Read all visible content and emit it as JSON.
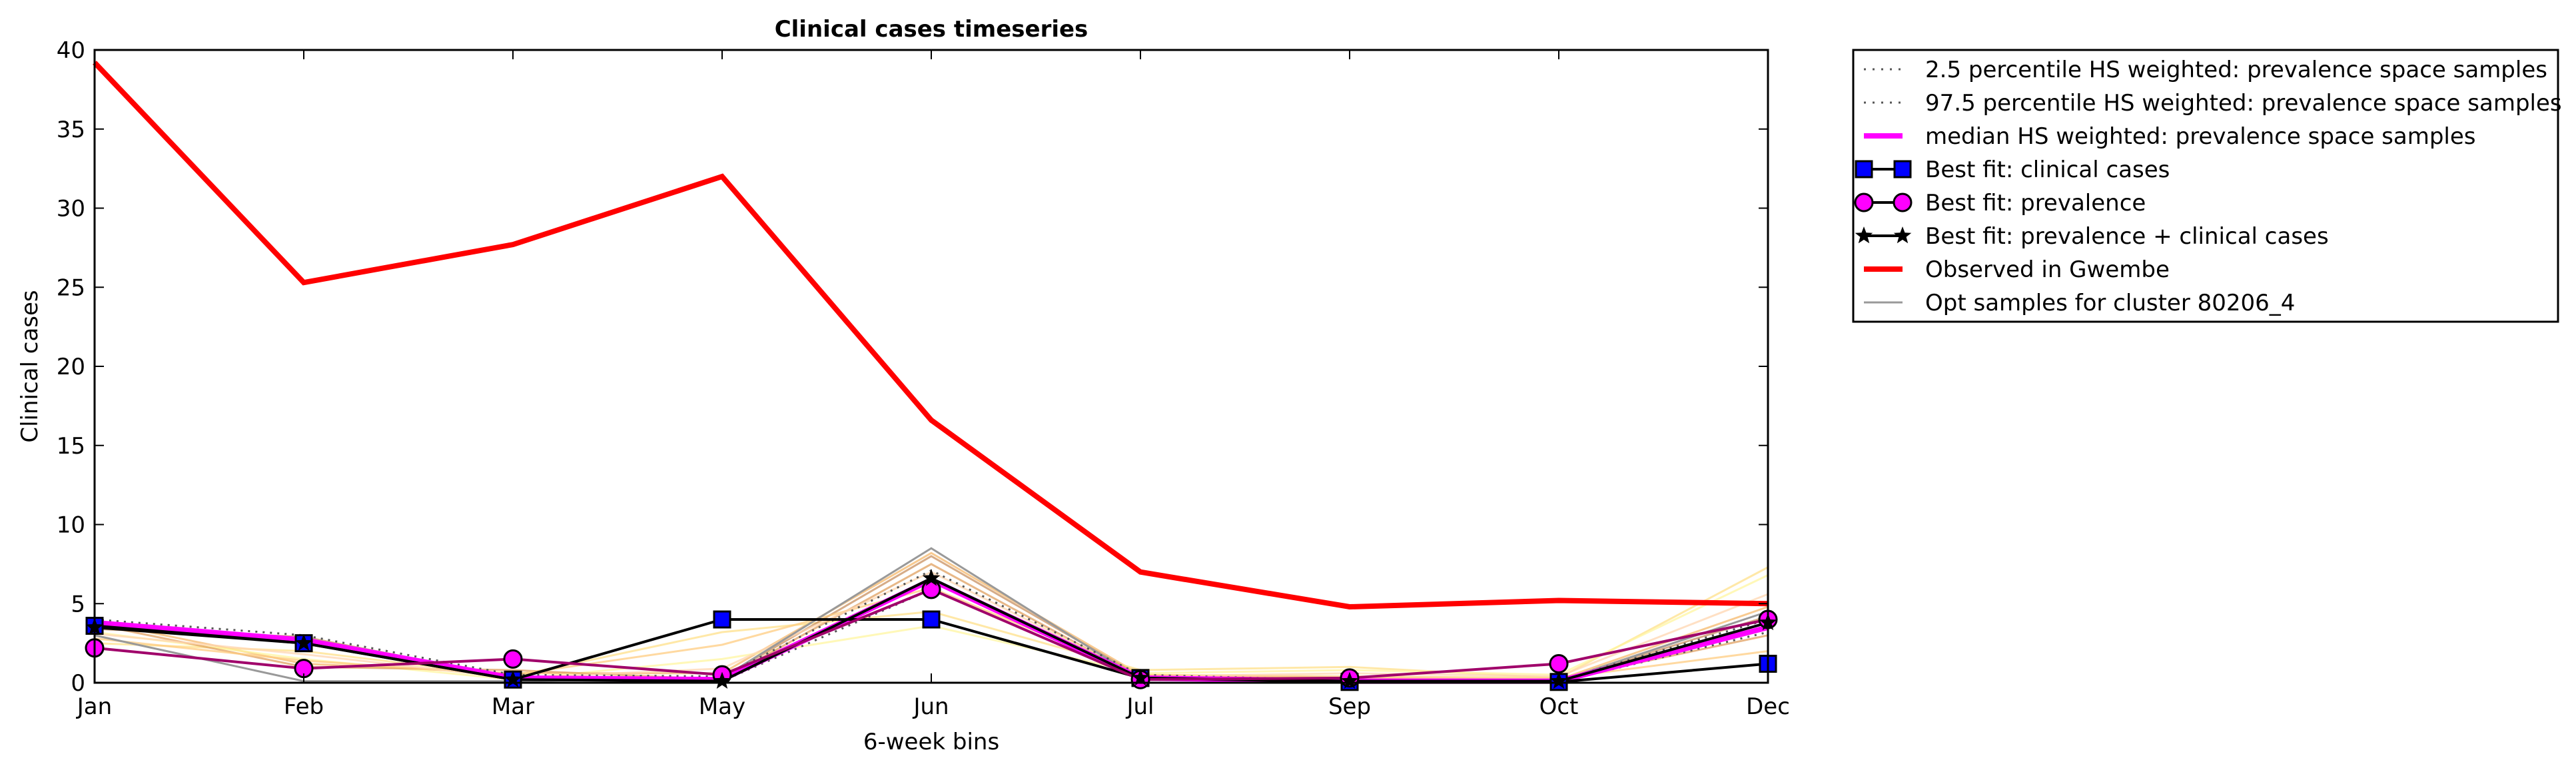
{
  "chart_data": {
    "type": "line",
    "title": "Clinical cases timeseries",
    "xlabel": "6-week bins",
    "ylabel": "Clinical cases",
    "categories": [
      "Jan",
      "Feb",
      "Mar",
      "May",
      "Jun",
      "Jul",
      "Sep",
      "Oct",
      "Dec"
    ],
    "ylim": [
      0,
      40
    ],
    "yticks": [
      "0",
      "5",
      "10",
      "15",
      "20",
      "25",
      "30",
      "35",
      "40"
    ],
    "grid": false,
    "legend_position": "outside-right",
    "series": [
      {
        "name": "2.5 percentile HS weighted: prevalence space samples",
        "style": "dotted",
        "color": "#555555",
        "values": [
          3.6,
          2.6,
          0.2,
          0.1,
          5.9,
          0.2,
          0.05,
          0.05,
          3.2
        ]
      },
      {
        "name": "97.5 percentile HS weighted: prevalence space samples",
        "style": "dotted",
        "color": "#555555",
        "values": [
          4.0,
          3.0,
          0.5,
          0.4,
          7.1,
          0.5,
          0.15,
          0.15,
          4.0
        ]
      },
      {
        "name": "median HS weighted: prevalence space samples",
        "style": "solid-thick",
        "color": "#ff00ff",
        "values": [
          3.8,
          2.7,
          0.3,
          0.2,
          6.5,
          0.3,
          0.1,
          0.1,
          3.5
        ]
      },
      {
        "name": "Best fit: clinical cases",
        "style": "square",
        "color": "#0000ff",
        "values": [
          3.6,
          2.5,
          0.2,
          4.0,
          4.0,
          0.3,
          0.05,
          0.05,
          1.2
        ]
      },
      {
        "name": "Best fit: prevalence",
        "style": "circle",
        "color": "#ff00ff",
        "values": [
          2.2,
          0.9,
          1.5,
          0.5,
          5.9,
          0.2,
          0.3,
          1.2,
          4.0
        ]
      },
      {
        "name": "Best fit: prevalence + clinical cases",
        "style": "star",
        "color": "#000000",
        "values": [
          3.5,
          2.5,
          0.2,
          0.1,
          6.6,
          0.3,
          0.1,
          0.1,
          3.8
        ]
      },
      {
        "name": "Observed in Gwembe",
        "style": "solid-red",
        "color": "#ff0000",
        "values": [
          39.2,
          25.3,
          27.7,
          32.0,
          16.6,
          7.0,
          4.8,
          5.2,
          5.0
        ]
      },
      {
        "name": "Opt samples for cluster 80206_4",
        "style": "thin-gray",
        "color": "#999999",
        "values": [
          3.0,
          0.1,
          0.1,
          0.3,
          8.5,
          0.2,
          0.1,
          0.1,
          4.5
        ]
      }
    ],
    "background_samples": [
      {
        "color": "#f5b86b",
        "values": [
          3.9,
          1.2,
          0.6,
          0.6,
          8.2,
          0.5,
          0.3,
          0.2,
          4.8
        ]
      },
      {
        "color": "#ffe08a",
        "values": [
          2.5,
          2.0,
          0.4,
          3.2,
          4.5,
          0.8,
          1.0,
          0.3,
          7.3
        ]
      },
      {
        "color": "#fff5a0",
        "values": [
          3.2,
          1.5,
          0.2,
          1.5,
          3.6,
          0.6,
          0.8,
          0.5,
          6.8
        ]
      },
      {
        "color": "#c89060",
        "values": [
          3.4,
          2.9,
          0.3,
          0.3,
          8.0,
          0.4,
          0.2,
          0.1,
          4.2
        ]
      },
      {
        "color": "#e0a060",
        "values": [
          3.7,
          1.0,
          0.8,
          0.2,
          7.5,
          0.3,
          0.2,
          0.2,
          3.0
        ]
      },
      {
        "color": "#ffcc80",
        "values": [
          2.8,
          1.4,
          0.5,
          2.4,
          6.0,
          0.5,
          0.4,
          0.3,
          2.0
        ]
      },
      {
        "color": "#ffd5b0",
        "values": [
          3.1,
          1.8,
          0.3,
          0.9,
          7.0,
          0.4,
          0.6,
          0.4,
          5.6
        ]
      }
    ]
  }
}
